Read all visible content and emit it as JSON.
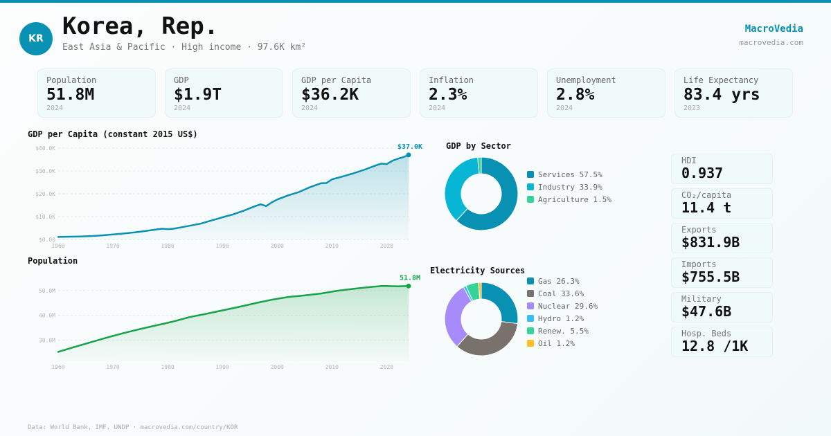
{
  "header": {
    "avatar_text": "KR",
    "title": "Korea, Rep.",
    "subtitle": "East Asia & Pacific · High income · 97.6K km²",
    "brand": "MacroVedia",
    "brand_url": "macrovedia.com"
  },
  "colors": {
    "accent": "#0891b2",
    "population_line": "#16a34a"
  },
  "kpis": [
    {
      "label": "Population",
      "value": "51.8M",
      "year": "2024"
    },
    {
      "label": "GDP",
      "value": "$1.9T",
      "year": "2024"
    },
    {
      "label": "GDP per Capita",
      "value": "$36.2K",
      "year": "2024"
    },
    {
      "label": "Inflation",
      "value": "2.3%",
      "year": "2024"
    },
    {
      "label": "Unemployment",
      "value": "2.8%",
      "year": "2024"
    },
    {
      "label": "Life Expectancy",
      "value": "83.4 yrs",
      "year": "2023"
    }
  ],
  "side_stats": [
    {
      "label": "HDI",
      "value": "0.937"
    },
    {
      "label": "CO₂/capita",
      "value": "11.4 t"
    },
    {
      "label": "Exports",
      "value": "$831.9B"
    },
    {
      "label": "Imports",
      "value": "$755.5B"
    },
    {
      "label": "Military",
      "value": "$47.6B"
    },
    {
      "label": "Hosp. Beds",
      "value": "12.8 /1K"
    }
  ],
  "footer": "Data: World Bank, IMF, UNDP · macrovedia.com/country/KOR",
  "chart_data": [
    {
      "type": "area",
      "title": "GDP per Capita (constant 2015 US$)",
      "xlabel": "",
      "ylabel": "",
      "ylim": [
        0,
        40000
      ],
      "yticks": [
        0,
        10000,
        20000,
        30000,
        40000
      ],
      "ytick_labels": [
        "$0.00",
        "$10.0K",
        "$20.0K",
        "$30.0K",
        "$40.0K"
      ],
      "xticks": [
        1960,
        1970,
        1980,
        1990,
        2000,
        2010,
        2020
      ],
      "xlim": [
        1960,
        2024
      ],
      "grid": true,
      "end_label": "$37.0K",
      "color": "#0891b2",
      "x": [
        1960,
        1962,
        1964,
        1966,
        1968,
        1970,
        1972,
        1974,
        1976,
        1978,
        1979,
        1980,
        1981,
        1982,
        1984,
        1986,
        1988,
        1989,
        1990,
        1992,
        1994,
        1996,
        1997,
        1998,
        1999,
        2000,
        2002,
        2004,
        2006,
        2008,
        2009,
        2010,
        2012,
        2014,
        2016,
        2018,
        2019,
        2020,
        2021,
        2022,
        2023,
        2024
      ],
      "y": [
        1100,
        1200,
        1300,
        1500,
        1800,
        2200,
        2600,
        3100,
        3700,
        4400,
        4700,
        4500,
        4700,
        5100,
        6000,
        6900,
        8300,
        9000,
        9700,
        11000,
        12700,
        14600,
        15400,
        14600,
        16200,
        17500,
        19300,
        20800,
        22900,
        24600,
        24700,
        26300,
        27600,
        29000,
        30600,
        32400,
        33200,
        33000,
        34400,
        35300,
        36000,
        37000
      ]
    },
    {
      "type": "area",
      "title": "Population",
      "xlabel": "",
      "ylabel": "",
      "ylim": [
        21.8,
        53
      ],
      "yticks": [
        30,
        40,
        50
      ],
      "ytick_labels": [
        "30.0M",
        "40.0M",
        "50.0M"
      ],
      "xticks": [
        1960,
        1970,
        1980,
        1990,
        2000,
        2010,
        2020
      ],
      "xlim": [
        1960,
        2024
      ],
      "grid": true,
      "end_label": "51.8M",
      "color": "#16a34a",
      "x": [
        1960,
        1963,
        1966,
        1969,
        1972,
        1975,
        1978,
        1981,
        1984,
        1987,
        1990,
        1993,
        1996,
        1999,
        2002,
        2005,
        2008,
        2011,
        2014,
        2017,
        2019,
        2020,
        2022,
        2024
      ],
      "y": [
        25.3,
        27.3,
        29.2,
        31.1,
        32.9,
        34.5,
        36.0,
        37.5,
        39.3,
        40.6,
        42.0,
        43.4,
        44.9,
        46.3,
        47.4,
        48.0,
        48.8,
        49.9,
        50.7,
        51.4,
        51.8,
        51.8,
        51.7,
        51.8
      ]
    },
    {
      "type": "pie",
      "title": "GDP by Sector",
      "donut": true,
      "categories": [
        "Services",
        "Industry",
        "Agriculture"
      ],
      "values": [
        57.5,
        33.9,
        1.5
      ],
      "labels": [
        "Services 57.5%",
        "Industry 33.9%",
        "Agriculture 1.5%"
      ],
      "colors": [
        "#0891b2",
        "#06b6d4",
        "#34d399"
      ]
    },
    {
      "type": "pie",
      "title": "Electricity Sources",
      "donut": true,
      "categories": [
        "Gas",
        "Coal",
        "Nuclear",
        "Hydro",
        "Renew.",
        "Oil"
      ],
      "values": [
        26.3,
        33.6,
        29.6,
        1.2,
        5.5,
        1.2
      ],
      "labels": [
        "Gas 26.3%",
        "Coal 33.6%",
        "Nuclear 29.6%",
        "Hydro 1.2%",
        "Renew. 5.5%",
        "Oil 1.2%"
      ],
      "colors": [
        "#0891b2",
        "#78716c",
        "#a78bfa",
        "#38bdf8",
        "#34d399",
        "#fbbf24"
      ]
    }
  ]
}
